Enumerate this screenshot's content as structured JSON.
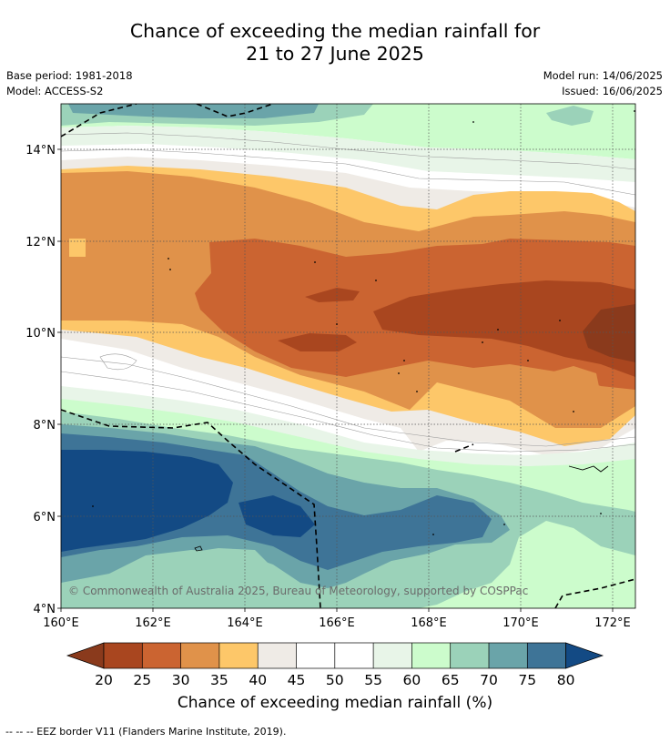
{
  "title": {
    "line1": "Chance of exceeding the median rainfall for",
    "line2": "21 to 27 June 2025"
  },
  "meta": {
    "base_period": "Base period: 1981-2018",
    "model": "Model: ACCESS-S2",
    "model_run": "Model run: 14/06/2025",
    "issued": "Issued: 16/06/2025"
  },
  "map": {
    "lon_range": [
      160,
      172.5
    ],
    "lat_range": [
      4,
      15
    ],
    "lon_ticks": [
      "160°E",
      "162°E",
      "164°E",
      "166°E",
      "168°E",
      "170°E",
      "172°E"
    ],
    "lat_ticks": [
      "4°N",
      "6°N",
      "8°N",
      "10°N",
      "12°N",
      "14°N"
    ],
    "grid": true,
    "copyright": "© Commonwealth of Australia 2025, Bureau of Meteorology, supported by COSPPac"
  },
  "colorbar": {
    "labels": [
      "20",
      "25",
      "30",
      "35",
      "40",
      "45",
      "50",
      "55",
      "60",
      "65",
      "70",
      "75",
      "80"
    ],
    "colors": {
      "below20": "#8a3a1c",
      "b20_25": "#a9461f",
      "b25_30": "#cb6431",
      "b30_35": "#e0924a",
      "b35_40": "#fdc769",
      "b40_45": "#efebe6",
      "b45_50": "#ffffff",
      "b50_55": "#ffffff",
      "b55_60": "#e8f5e8",
      "b60_65": "#ccfccc",
      "b65_70": "#9bd2b9",
      "b70_75": "#6aa4a9",
      "b75_80": "#3e7497",
      "above80": "#134a84"
    },
    "title": "Chance of exceeding median rainfall (%)"
  },
  "footer": "--  --  -- EEZ border V11 (Flanders Marine Institute, 2019)."
}
